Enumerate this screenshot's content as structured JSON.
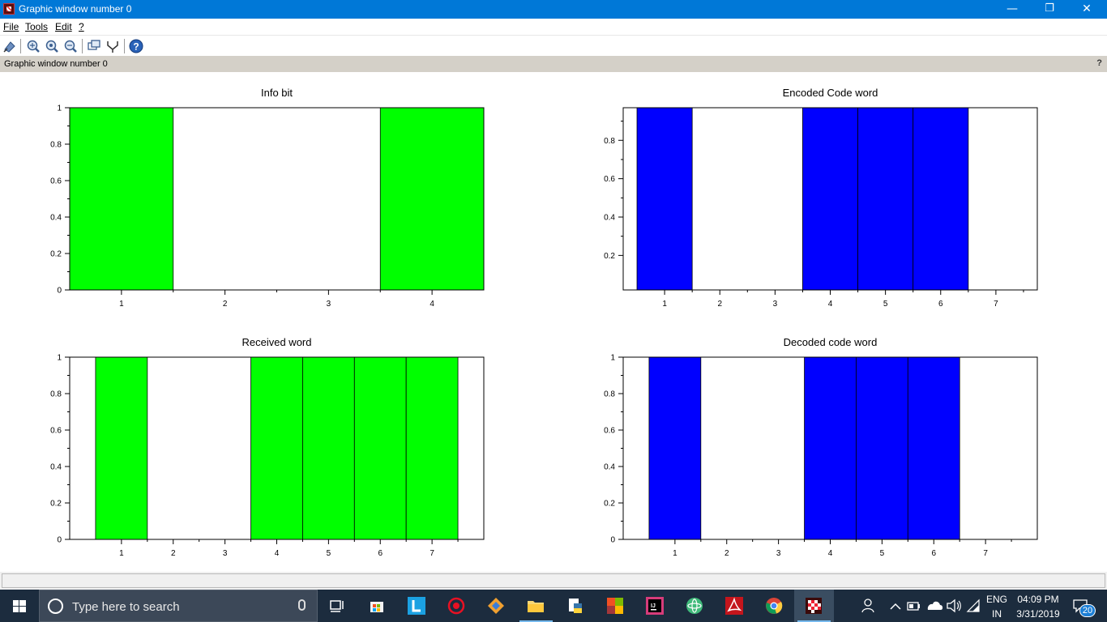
{
  "window": {
    "title": "Graphic window number 0",
    "minimize": "—",
    "restore": "❐",
    "close": "✕"
  },
  "menu": {
    "items": [
      {
        "label": "File"
      },
      {
        "label": "Tools"
      },
      {
        "label": "Edit"
      },
      {
        "label": "?"
      }
    ]
  },
  "toolbar": {
    "buttons": [
      "datatip-icon",
      "zoom-in-icon",
      "zoom-area-icon",
      "zoom-out-icon",
      "rotate-icon",
      "edit-plot-icon",
      "help-icon"
    ]
  },
  "infobar": {
    "text": "Graphic window number 0",
    "help": "?"
  },
  "chart_data": [
    {
      "type": "bar",
      "title": "Info bit",
      "categories": [
        "1",
        "2",
        "3",
        "4"
      ],
      "values": [
        1,
        0,
        0,
        1
      ],
      "xlim": [
        0.5,
        4.5
      ],
      "ylim": [
        0,
        1
      ],
      "yticks": [
        "0",
        "0.2",
        "0.4",
        "0.6",
        "0.8",
        "1"
      ],
      "color": "#00ff00",
      "grid": false
    },
    {
      "type": "bar",
      "title": "Encoded Code word",
      "categories": [
        "1",
        "2",
        "3",
        "4",
        "5",
        "6",
        "7"
      ],
      "values": [
        1,
        0,
        0,
        1,
        1,
        1,
        0
      ],
      "xlim": [
        0.25,
        7.75
      ],
      "ylim": [
        0.02,
        0.97
      ],
      "yticks": [
        "0.2",
        "0.4",
        "0.6",
        "0.8"
      ],
      "color": "#0000ff",
      "grid": false
    },
    {
      "type": "bar",
      "title": "Received word",
      "categories": [
        "1",
        "2",
        "3",
        "4",
        "5",
        "6",
        "7"
      ],
      "values": [
        1,
        0,
        0,
        1,
        1,
        1,
        1
      ],
      "xlim": [
        0,
        8
      ],
      "ylim": [
        0,
        1
      ],
      "yticks": [
        "0",
        "0.2",
        "0.4",
        "0.6",
        "0.8",
        "1"
      ],
      "color": "#00ff00",
      "grid": false
    },
    {
      "type": "bar",
      "title": "Decoded code word",
      "categories": [
        "1",
        "2",
        "3",
        "4",
        "5",
        "6",
        "7"
      ],
      "values": [
        1,
        0,
        0,
        1,
        1,
        1,
        0
      ],
      "xlim": [
        0,
        8
      ],
      "ylim": [
        0,
        1
      ],
      "yticks": [
        "0",
        "0.2",
        "0.4",
        "0.6",
        "0.8",
        "1"
      ],
      "color": "#0000ff",
      "grid": false
    }
  ],
  "taskbar": {
    "search_placeholder": "Type here to search",
    "apps": [
      "task-view-icon",
      "store-icon",
      "app-l-icon",
      "app-red-icon",
      "git-icon",
      "file-explorer-icon",
      "python-icon",
      "office-icon",
      "intellij-icon",
      "atom-icon",
      "acrobat-icon",
      "chrome-icon",
      "scilab-icon"
    ],
    "lang_top": "ENG",
    "lang_bottom": "IN",
    "time": "04:09 PM",
    "date": "3/31/2019",
    "notifications": "20"
  }
}
